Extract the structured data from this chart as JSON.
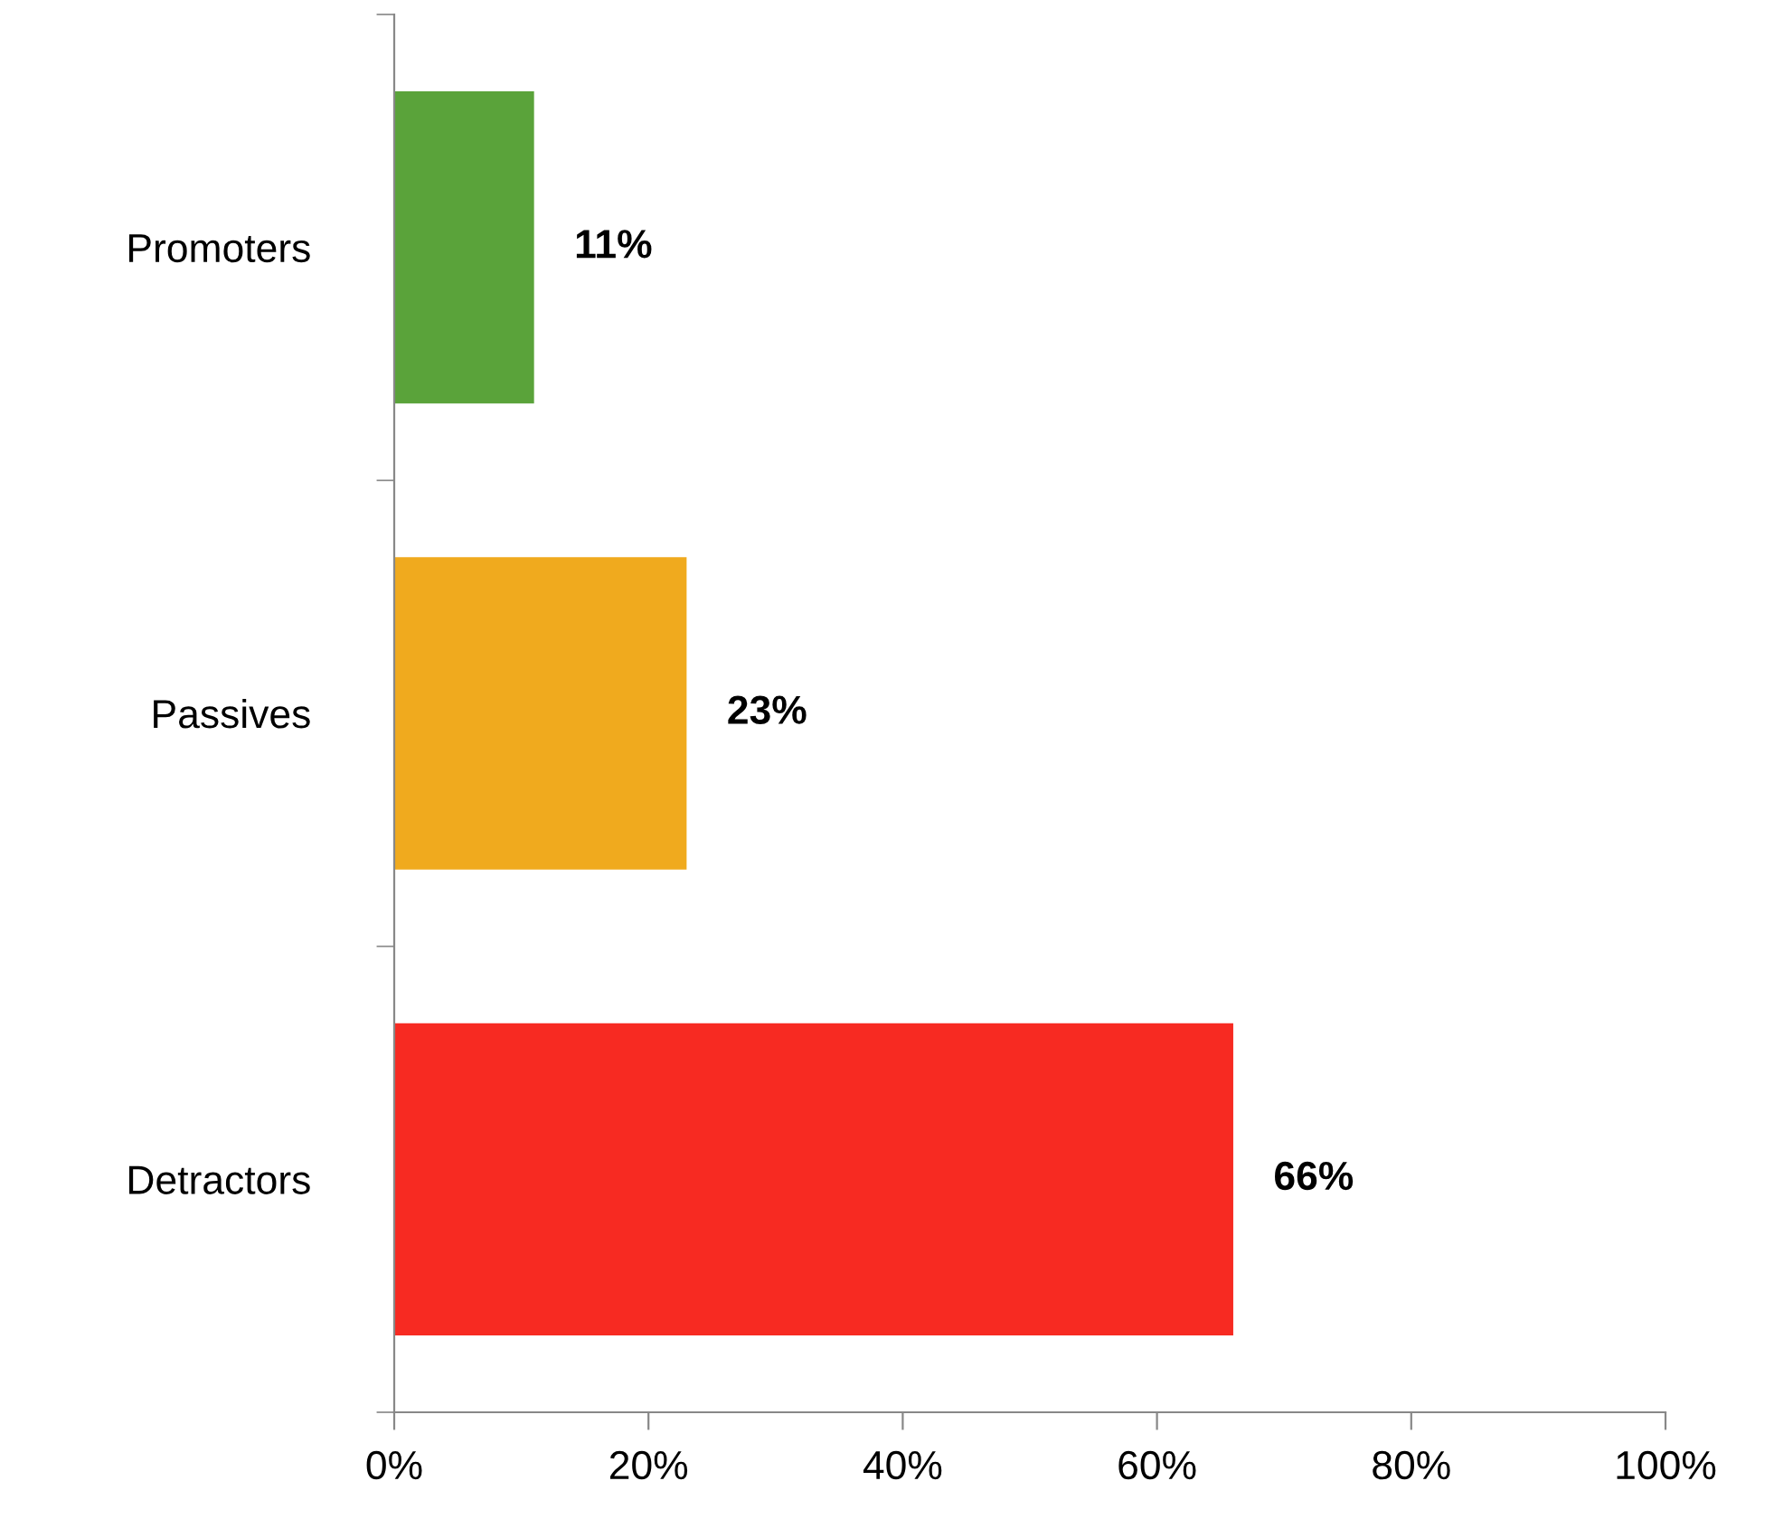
{
  "chart_data": {
    "type": "bar",
    "orientation": "horizontal",
    "categories": [
      "Promoters",
      "Passives",
      "Detractors"
    ],
    "values": [
      11,
      23,
      66
    ],
    "colors": [
      "#5aa33a",
      "#f0aa1e",
      "#f72a22"
    ],
    "value_labels": [
      "11%",
      "23%",
      "66%"
    ],
    "xlim": [
      0,
      100
    ],
    "xticks": [
      {
        "value": 0,
        "label": "0%"
      },
      {
        "value": 20,
        "label": "20%"
      },
      {
        "value": 40,
        "label": "40%"
      },
      {
        "value": 60,
        "label": "60%"
      },
      {
        "value": 80,
        "label": "80%"
      },
      {
        "value": 100,
        "label": "100%"
      }
    ],
    "grid": false,
    "legend": false
  }
}
